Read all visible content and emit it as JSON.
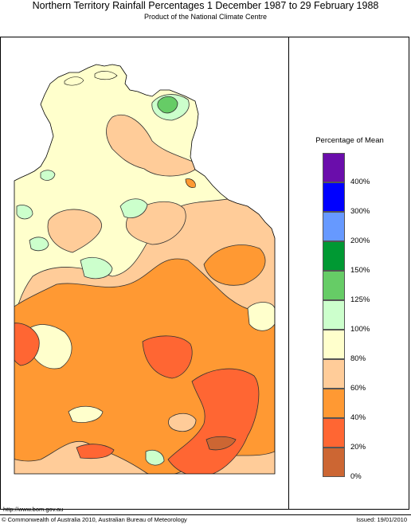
{
  "header": {
    "title": "Northern Territory Rainfall Percentages 1 December 1987 to 29 February 1988",
    "subtitle": "Product of the National Climate Centre"
  },
  "legend": {
    "title": "Percentage of Mean",
    "classes": [
      {
        "color": "#6a0dab"
      },
      {
        "color": "#0000ff",
        "label": "400%"
      },
      {
        "color": "#6699ff",
        "label": "300%"
      },
      {
        "color": "#009933",
        "label": "200%"
      },
      {
        "color": "#66cc66",
        "label": "150%"
      },
      {
        "color": "#ccffcc",
        "label": "125%"
      },
      {
        "color": "#ffffcc",
        "label": "100%"
      },
      {
        "color": "#ffcc99",
        "label": "80%"
      },
      {
        "color": "#ff9933",
        "label": "60%"
      },
      {
        "color": "#ff6633",
        "label": "40%"
      },
      {
        "color": "#cc6633",
        "label": "20%"
      },
      {
        "label": "0%"
      }
    ]
  },
  "footer": {
    "url": "http://www.bom.gov.au",
    "copyright": "© Commonwealth of Australia 2010, Australian Bureau of Meteorology",
    "issued": "Issued: 19/01/2010"
  }
}
